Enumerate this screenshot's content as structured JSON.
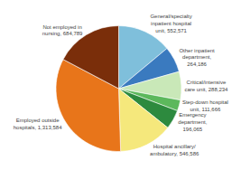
{
  "chart_data": {
    "type": "pie",
    "categories": [
      "General/specialty\ninpatient hospital\nunit, 552,571",
      "Other inpatient\ndepartment,\n264,186",
      "Critical/intensive\ncare unit, 288,234",
      "Step-down hospital\nunit, 111,666",
      "Emergency\ndepartment,\n196,065",
      "Hospital ancillary/\nambulatory, 546,586",
      "Employed outside\nhospitals, 1,313,584",
      "Not employed in\nnursing, 684,789"
    ],
    "values": [
      552571,
      264186,
      288234,
      111666,
      196065,
      546586,
      1313584,
      684789
    ],
    "colors": [
      "#7fbfdb",
      "#3a7abf",
      "#c9e8b8",
      "#5cb85c",
      "#2d8a3e",
      "#f5e87c",
      "#e8751a",
      "#7a2e0a"
    ]
  }
}
